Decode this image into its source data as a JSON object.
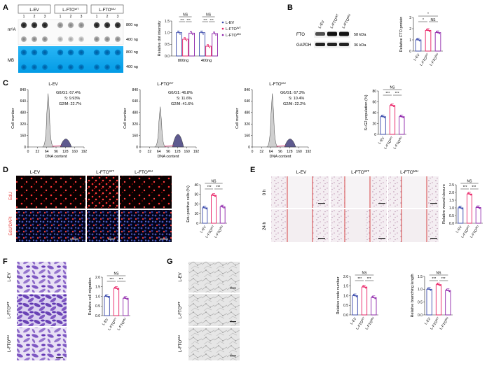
{
  "panels": {
    "A": {
      "letter": "A",
      "groups": [
        "L-EV",
        "L-FTO",
        "L-FTO"
      ],
      "group_sups": [
        "",
        "WT",
        "MU"
      ],
      "lanes": [
        "1",
        "2",
        "3"
      ],
      "row_labels": [
        "m⁶A",
        "MB"
      ],
      "amounts": [
        "800 ng",
        "400 ng",
        "800 ng",
        "400 ng"
      ],
      "chart": {
        "type": "bar",
        "ylabel": "Relative dot intensity",
        "yticks": [
          "0.0",
          "0.5",
          "1.0",
          "1.5"
        ],
        "ylim": [
          0,
          1.5
        ],
        "categories": [
          "800ng",
          "400ng"
        ],
        "series": [
          {
            "name": "L-EV",
            "values": [
              1.0,
              1.0
            ],
            "color": "#3949ab"
          },
          {
            "name": "L-FTO",
            "values": [
              0.72,
              0.42
            ],
            "color": "#e91e63"
          },
          {
            "name": "L-FTO",
            "values": [
              0.98,
              0.96
            ],
            "color": "#8e24aa"
          }
        ],
        "legend_sups": [
          "",
          "WT",
          "MU"
        ],
        "sig": [
          "NS",
          "***",
          "***",
          "NS",
          "***",
          "***"
        ]
      }
    },
    "B": {
      "letter": "B",
      "lanes": [
        "L-EV",
        "L-FTO",
        "L-FTO"
      ],
      "lane_sups": [
        "",
        "WT",
        "MU"
      ],
      "bands": [
        "FTO",
        "GAPDH"
      ],
      "kda": [
        "58 kDa",
        "36 kDa"
      ],
      "chart": {
        "type": "bar",
        "ylabel": "Relative FTO protein",
        "yticks": [
          "0",
          "1",
          "2",
          "3"
        ],
        "ylim": [
          0,
          3
        ],
        "categories": [
          "L-EV",
          "L-FTO",
          "L-FTO"
        ],
        "cat_sups": [
          "",
          "WT",
          "MU"
        ],
        "values": [
          1.0,
          1.85,
          1.65
        ],
        "sig": [
          "*",
          "*",
          "NS"
        ]
      }
    },
    "C": {
      "letter": "C",
      "histos": [
        {
          "title": "L-EV",
          "sup": "",
          "g0": "G0/G1: 67.4%",
          "s": "S: 9.93%",
          "g2": "G2/M: 22.7%"
        },
        {
          "title": "L-FTO",
          "sup": "WT",
          "g0": "G0/G1: 46.8%",
          "s": "S: 11.6%",
          "g2": "G2/M: 41.6%"
        },
        {
          "title": "L-FTO",
          "sup": "MU",
          "g0": "G0/G1: 67.3%",
          "s": "S: 10.4%",
          "g2": "G2/M: 22.2%"
        }
      ],
      "ylabel": "Cell number",
      "xlabel": "DNA content",
      "yticks": [
        "0",
        "160",
        "320",
        "480",
        "640",
        "840"
      ],
      "xticks": [
        "0",
        "32",
        "64",
        "96",
        "128",
        "160",
        "192"
      ],
      "chart": {
        "type": "bar",
        "ylabel": "S+G2 population (%)",
        "yticks": [
          "0",
          "20",
          "40",
          "60",
          "80"
        ],
        "ylim": [
          0,
          80
        ],
        "categories": [
          "L-EV",
          "L-FTO",
          "L-FTO"
        ],
        "cat_sups": [
          "",
          "WT",
          "MU"
        ],
        "values": [
          32.6,
          53.2,
          32.6
        ],
        "sig": [
          "NS",
          "***",
          "***"
        ]
      }
    },
    "D": {
      "letter": "D",
      "cols": [
        "L-EV",
        "L-FTO",
        "L-FTO"
      ],
      "col_sups": [
        "",
        "WT",
        "MU"
      ],
      "rows": [
        "EdU",
        "EdU/DAPI"
      ],
      "chart": {
        "type": "bar",
        "ylabel": "Edu positive cells (%)",
        "yticks": [
          "0",
          "10",
          "20",
          "30",
          "40"
        ],
        "ylim": [
          0,
          40
        ],
        "categories": [
          "L-EV",
          "L-FTO",
          "L-FTO"
        ],
        "cat_sups": [
          "",
          "WT",
          "MU"
        ],
        "values": [
          16,
          29,
          17
        ],
        "sig": [
          "NS",
          "***",
          "***"
        ]
      }
    },
    "E": {
      "letter": "E",
      "cols": [
        "L-EV",
        "L-FTO",
        "L-FTO"
      ],
      "col_sups": [
        "",
        "WT",
        "MU"
      ],
      "rows": [
        "0 h",
        "24 h"
      ],
      "chart": {
        "type": "bar",
        "ylabel": "Relative wound closure",
        "yticks": [
          "0.0",
          "0.5",
          "1.0",
          "1.5",
          "2.0",
          "2.5"
        ],
        "ylim": [
          0,
          2.5
        ],
        "categories": [
          "L-EV",
          "L-FTO",
          "L-FTO"
        ],
        "cat_sups": [
          "",
          "WT",
          "MU"
        ],
        "values": [
          1.0,
          1.9,
          1.02
        ],
        "sig": [
          "NS",
          "***",
          "***"
        ]
      }
    },
    "F": {
      "letter": "F",
      "rows": [
        "L-EV",
        "L-FTO",
        "L-FTO"
      ],
      "row_sups": [
        "",
        "WT",
        "MU"
      ],
      "chart": {
        "type": "bar",
        "ylabel": "Relative cell migration",
        "yticks": [
          "0.0",
          "0.5",
          "1.0",
          "1.5",
          "2.0"
        ],
        "ylim": [
          0,
          2.0
        ],
        "categories": [
          "L-EV",
          "L-FTO",
          "L-FTO"
        ],
        "cat_sups": [
          "",
          "WT",
          "MU"
        ],
        "values": [
          1.0,
          1.42,
          0.9
        ],
        "sig": [
          "NS",
          "***",
          "***"
        ]
      }
    },
    "G": {
      "letter": "G",
      "rows": [
        "L-EV",
        "L-FTO",
        "L-FTO"
      ],
      "row_sups": [
        "",
        "WT",
        "MU"
      ],
      "chart1": {
        "type": "bar",
        "ylabel": "Relative node number",
        "yticks": [
          "0.0",
          "0.5",
          "1.0",
          "1.5",
          "2.0"
        ],
        "ylim": [
          0,
          2.0
        ],
        "categories": [
          "L-EV",
          "L-FTO",
          "L-FTO"
        ],
        "cat_sups": [
          "",
          "WT",
          "MU"
        ],
        "values": [
          1.0,
          1.45,
          0.9
        ],
        "sig": [
          "NS",
          "***",
          "***"
        ]
      },
      "chart2": {
        "type": "bar",
        "ylabel": "Relative branching length",
        "yticks": [
          "0.0",
          "0.5",
          "1.0",
          "1.5"
        ],
        "ylim": [
          0,
          1.5
        ],
        "categories": [
          "L-EV",
          "L-FTO",
          "L-FTO"
        ],
        "cat_sups": [
          "",
          "WT",
          "MU"
        ],
        "values": [
          1.0,
          1.18,
          0.95
        ],
        "sig": [
          "NS",
          "***",
          "***"
        ]
      }
    }
  }
}
